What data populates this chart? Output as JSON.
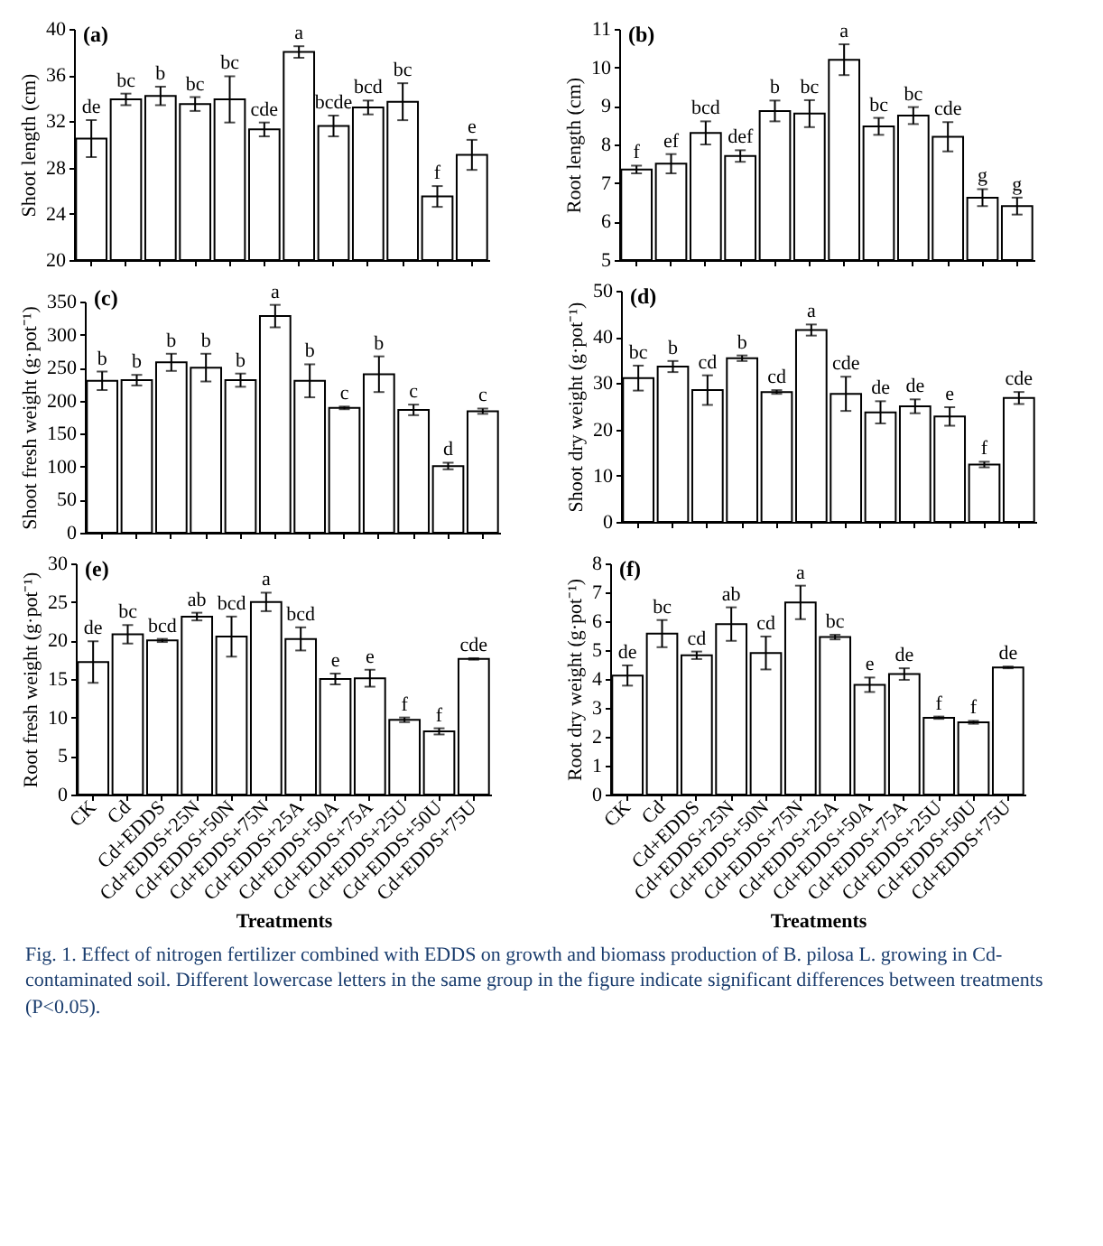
{
  "chart_data": [
    {
      "type": "bar",
      "title": "(a)",
      "ylabel": "Shoot  length (cm)",
      "categories": [
        null,
        null,
        null,
        null,
        null,
        null,
        null,
        null,
        null,
        null,
        null,
        null
      ],
      "tick_labels": "y",
      "color": "#ffffff",
      "ylim": [
        20,
        40
      ],
      "yticks": [
        20,
        24,
        28,
        32,
        36,
        40
      ],
      "values": [
        30.5,
        33.9,
        34.2,
        33.5,
        33.9,
        31.3,
        38.0,
        31.6,
        33.2,
        33.7,
        25.5,
        29.1
      ],
      "errors": [
        1.6,
        0.5,
        0.8,
        0.6,
        2.0,
        0.6,
        0.5,
        0.9,
        0.6,
        1.6,
        0.9,
        1.3
      ],
      "value_labels": [
        "de",
        "bc",
        "b",
        "bc",
        "bc",
        "cde",
        "a",
        "bcde",
        "bcd",
        "bc",
        "f",
        "e"
      ]
    },
    {
      "type": "bar",
      "title": "(b)",
      "ylabel": "Root  length (cm)",
      "categories": [
        null,
        null,
        null,
        null,
        null,
        null,
        null,
        null,
        null,
        null,
        null,
        null
      ],
      "tick_labels": "y",
      "color": "#ffffff",
      "ylim": [
        5,
        11
      ],
      "yticks": [
        5,
        6,
        7,
        8,
        9,
        10,
        11
      ],
      "values": [
        7.35,
        7.5,
        8.3,
        7.7,
        8.87,
        8.8,
        10.2,
        8.47,
        8.75,
        8.2,
        6.62,
        6.4
      ],
      "errors": [
        0.1,
        0.25,
        0.3,
        0.15,
        0.27,
        0.35,
        0.4,
        0.22,
        0.22,
        0.38,
        0.22,
        0.22
      ],
      "value_labels": [
        "f",
        "ef",
        "bcd",
        "def",
        "b",
        "bc",
        "a",
        "bc",
        "bc",
        "cde",
        "g",
        "g"
      ]
    },
    {
      "type": "bar",
      "title": "(c)",
      "ylabel": "Shoot fresh weight (g·pot⁻¹)",
      "categories": [
        null,
        null,
        null,
        null,
        null,
        null,
        null,
        null,
        null,
        null,
        null,
        null
      ],
      "tick_labels": "y",
      "color": "#ffffff",
      "ylim": [
        0,
        350
      ],
      "yticks": [
        0,
        50,
        100,
        150,
        200,
        250,
        300,
        350
      ],
      "values": [
        230,
        231,
        258,
        250,
        231,
        328,
        230,
        189,
        240,
        186,
        101,
        184
      ],
      "errors": [
        14,
        8,
        13,
        21,
        10,
        17,
        25,
        2,
        27,
        8,
        5,
        4
      ],
      "value_labels": [
        "b",
        "b",
        "b",
        "b",
        "b",
        "a",
        "b",
        "c",
        "b",
        "c",
        "d",
        "c"
      ]
    },
    {
      "type": "bar",
      "title": "(d)",
      "ylabel": "Shoot dry weight (g·pot⁻¹)",
      "categories": [
        null,
        null,
        null,
        null,
        null,
        null,
        null,
        null,
        null,
        null,
        null,
        null
      ],
      "tick_labels": "y",
      "color": "#ffffff",
      "ylim": [
        0,
        50
      ],
      "yticks": [
        0,
        10,
        20,
        30,
        40,
        50
      ],
      "values": [
        31.1,
        33.6,
        28.5,
        35.4,
        28.1,
        41.5,
        27.7,
        23.7,
        25.0,
        22.8,
        12.4,
        26.8
      ],
      "errors": [
        2.7,
        1.2,
        3.2,
        0.6,
        0.4,
        1.2,
        3.7,
        2.4,
        1.5,
        2.0,
        0.6,
        1.3
      ],
      "value_labels": [
        "bc",
        "b",
        "cd",
        "b",
        "cd",
        "a",
        "cde",
        "de",
        "de",
        "e",
        "f",
        "cde"
      ]
    },
    {
      "type": "bar",
      "title": "(e)",
      "xlabel": "Treatments",
      "ylabel": "Root fresh weight (g·pot⁻¹)",
      "categories": [
        "CK",
        "Cd",
        "Cd+EDDS",
        "Cd+EDDS+25N",
        "Cd+EDDS+50N",
        "Cd+EDDS+75N",
        "Cd+EDDS+25A",
        "Cd+EDDS+50A",
        "Cd+EDDS+75A",
        "Cd+EDDS+25U",
        "Cd+EDDS+50U",
        "Cd+EDDS+75U"
      ],
      "color": "#ffffff",
      "ylim": [
        0,
        30
      ],
      "yticks": [
        0,
        5,
        10,
        15,
        20,
        25,
        30
      ],
      "values": [
        17.2,
        20.8,
        20.0,
        23.1,
        20.5,
        25.0,
        20.2,
        15.0,
        15.1,
        9.7,
        8.2,
        17.6
      ],
      "errors": [
        2.7,
        1.2,
        0.2,
        0.5,
        2.6,
        1.2,
        1.5,
        0.7,
        1.1,
        0.3,
        0.4,
        0.1
      ],
      "value_labels": [
        "de",
        "bc",
        "bcd",
        "ab",
        "bcd",
        "a",
        "bcd",
        "e",
        "e",
        "f",
        "f",
        "cde"
      ]
    },
    {
      "type": "bar",
      "title": "(f)",
      "xlabel": "Treatments",
      "ylabel": "Root dry weight (g·pot⁻¹)",
      "categories": [
        "CK",
        "Cd",
        "Cd+EDDS",
        "Cd+EDDS+25N",
        "Cd+EDDS+50N",
        "Cd+EDDS+75N",
        "Cd+EDDS+25A",
        "Cd+EDDS+50A",
        "Cd+EDDS+75A",
        "Cd+EDDS+25U",
        "Cd+EDDS+50U",
        "Cd+EDDS+75U"
      ],
      "color": "#ffffff",
      "ylim": [
        0,
        8
      ],
      "yticks": [
        0,
        1,
        2,
        3,
        4,
        5,
        6,
        7,
        8
      ],
      "values": [
        4.12,
        5.57,
        4.82,
        5.9,
        4.9,
        6.65,
        5.45,
        3.8,
        4.17,
        2.66,
        2.5,
        4.4
      ],
      "errors": [
        0.35,
        0.47,
        0.13,
        0.58,
        0.57,
        0.58,
        0.08,
        0.25,
        0.2,
        0.04,
        0.05,
        0.03
      ],
      "value_labels": [
        "de",
        "bc",
        "cd",
        "ab",
        "cd",
        "a",
        "bc",
        "e",
        "de",
        "f",
        "f",
        "de"
      ],
      "annotations": [
        "Fig. 1. Effect of nitrogen fertilizer combined with EDDS on growth and biomass production of B. pilosa L. growing in Cd-contaminated soil. Different lowercase letters in the same group in the figure indicate significant differences between treatments (P<0.05)."
      ]
    }
  ]
}
